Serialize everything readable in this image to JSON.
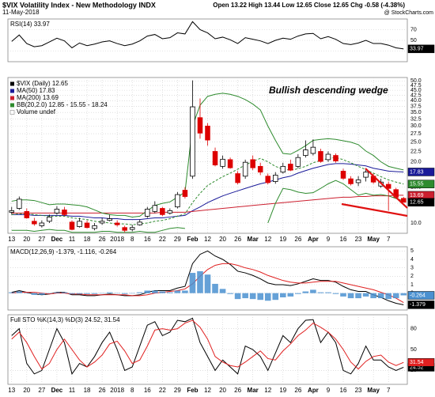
{
  "header": {
    "title": "$VIX Volatility Index - New Methodology INDX",
    "date": "11-May-2018",
    "quote": "Open 13.22 High 13.44 Low 12.65 Close 12.65 Chg -0.58 (-4.38%)",
    "source": "@ StockCharts.com"
  },
  "chart_data": [
    {
      "type": "line",
      "title": "RSI(14) 33.97",
      "ylim": [
        10,
        90
      ],
      "yticks": [
        30,
        50,
        70
      ],
      "grid": true,
      "series": [
        {
          "color": "#000000",
          "tag": true,
          "values": [
            48,
            60,
            44,
            38,
            40,
            47,
            54,
            49,
            36,
            45,
            40,
            43,
            47,
            49,
            44,
            40,
            43,
            49,
            58,
            61,
            53,
            55,
            64,
            62,
            85,
            70,
            64,
            53,
            56,
            51,
            44,
            55,
            52,
            49,
            44,
            50,
            54,
            52,
            58,
            62,
            63,
            53,
            57,
            52,
            44,
            42,
            45,
            50,
            44,
            44,
            41,
            36,
            33.97
          ]
        }
      ]
    },
    {
      "type": "candlestick",
      "log_scale": true,
      "grid": true,
      "ylim": [
        8.9,
        52
      ],
      "annotation": "Bullish descending wedge",
      "yticks": [
        {
          "value": 10,
          "label": "10.0"
        },
        12.5,
        {
          "value": 15,
          "label": "15.0"
        },
        17.5,
        {
          "value": 20,
          "label": "20.0"
        },
        22.5,
        {
          "value": 25,
          "label": "25.0"
        },
        27.5,
        {
          "value": 30,
          "label": "30.0"
        },
        32.5,
        {
          "value": 35,
          "label": "35.0"
        },
        37.5,
        {
          "value": 40,
          "label": "40.0"
        },
        42.5,
        {
          "value": 45,
          "label": "45.0"
        },
        47.5,
        {
          "value": 50,
          "label": "50.0"
        }
      ],
      "categories": [
        "13",
        null,
        "20",
        null,
        "27",
        null,
        "Dec",
        null,
        "11",
        null,
        "18",
        null,
        "26",
        null,
        "2018",
        null,
        "8",
        null,
        "16",
        null,
        "22",
        null,
        "29",
        null,
        "Feb",
        null,
        "12",
        null,
        "20",
        null,
        "26",
        null,
        "Mar",
        null,
        "12",
        null,
        "19",
        null,
        "26",
        null,
        "Apr",
        null,
        "9",
        null,
        "16",
        null,
        "23",
        null,
        "May",
        null,
        "7",
        null,
        null
      ],
      "candles": {
        "name": "$VIX (Daily) 12.65",
        "up_color": "#000000",
        "down_color": "#dd0000",
        "tag": true,
        "open": [
          11.3,
          11.8,
          11.4,
          10.2,
          9.7,
          10.2,
          11.2,
          11.6,
          10.1,
          9.6,
          10.0,
          9.4,
          10.0,
          10.3,
          10.0,
          9.5,
          9.3,
          9.8,
          10.8,
          11.4,
          11.8,
          11.2,
          12.0,
          14.5,
          17.0,
          33.0,
          30.0,
          22.5,
          19.0,
          20.5,
          17.5,
          17.0,
          20.5,
          19.0,
          17.0,
          16.0,
          17.8,
          19.5,
          19.0,
          21.5,
          22.0,
          22.5,
          20.5,
          21.5,
          18.0,
          16.5,
          15.8,
          16.8,
          17.0,
          15.2,
          15.5,
          14.6,
          13.22
        ],
        "high": [
          12.0,
          13.5,
          11.8,
          10.6,
          10.3,
          11.0,
          12.1,
          12.0,
          10.3,
          10.6,
          10.3,
          10.0,
          10.6,
          11.0,
          10.3,
          9.7,
          9.8,
          10.4,
          12.0,
          12.8,
          12.0,
          11.8,
          14.2,
          15.0,
          50.3,
          41.0,
          31.0,
          23.5,
          21.5,
          21.0,
          18.0,
          20.5,
          21.5,
          19.8,
          17.5,
          17.8,
          19.8,
          20.5,
          21.8,
          25.5,
          25.8,
          23.2,
          22.5,
          22.0,
          18.5,
          17.0,
          17.0,
          18.5,
          17.5,
          16.5,
          16.0,
          14.9,
          13.44
        ],
        "low": [
          11.0,
          11.6,
          10.5,
          9.7,
          9.5,
          10.0,
          11.0,
          10.8,
          9.2,
          9.5,
          9.4,
          9.2,
          9.8,
          10.2,
          9.6,
          9.0,
          9.1,
          9.7,
          10.6,
          11.2,
          10.8,
          11.0,
          11.8,
          13.2,
          16.5,
          26.0,
          24.0,
          19.0,
          18.5,
          18.5,
          15.5,
          16.5,
          18.2,
          17.2,
          15.5,
          15.6,
          17.5,
          18.0,
          18.6,
          21.0,
          21.5,
          19.8,
          20.0,
          19.8,
          16.3,
          15.3,
          15.2,
          16.0,
          15.6,
          14.9,
          11.5,
          13.2,
          12.65
        ],
        "close": [
          11.5,
          13.1,
          10.6,
          9.9,
          10.0,
          10.7,
          11.7,
          11.0,
          9.3,
          10.2,
          9.5,
          9.7,
          10.2,
          10.5,
          9.8,
          9.2,
          9.5,
          10.1,
          11.7,
          12.2,
          11.0,
          11.5,
          13.8,
          13.5,
          37.3,
          27.7,
          25.6,
          19.3,
          20.6,
          18.7,
          15.8,
          19.9,
          18.7,
          17.8,
          15.8,
          17.2,
          19.0,
          18.2,
          21.0,
          22.9,
          23.6,
          20.1,
          21.8,
          20.2,
          16.6,
          15.6,
          16.3,
          17.8,
          15.9,
          15.9,
          14.8,
          13.4,
          12.65
        ]
      },
      "series": [
        {
          "name": "MA(50) 17.83",
          "color": "#1a1a99",
          "tag": true,
          "values": [
            11.0,
            11.0,
            11.0,
            10.9,
            10.9,
            10.9,
            10.9,
            10.9,
            10.8,
            10.8,
            10.7,
            10.6,
            10.6,
            10.5,
            10.5,
            10.4,
            10.4,
            10.4,
            10.5,
            10.6,
            10.6,
            10.7,
            10.8,
            10.9,
            11.5,
            12.0,
            12.6,
            13.1,
            13.6,
            14.0,
            14.4,
            14.8,
            15.2,
            15.6,
            15.9,
            16.3,
            16.7,
            17.0,
            17.6,
            18.1,
            18.6,
            19.0,
            19.4,
            19.6,
            19.6,
            19.5,
            19.3,
            19.1,
            18.6,
            18.3,
            18.0,
            17.9,
            17.83
          ]
        },
        {
          "name": "MA(200) 13.69",
          "color": "#cc1f2f",
          "tag": true,
          "values": [
            11.2,
            11.2,
            11.2,
            11.2,
            11.2,
            11.2,
            11.2,
            11.2,
            11.2,
            11.2,
            11.2,
            11.2,
            11.2,
            11.2,
            11.2,
            11.2,
            11.2,
            11.2,
            11.2,
            11.2,
            11.3,
            11.3,
            11.3,
            11.3,
            11.4,
            11.5,
            11.6,
            11.7,
            11.8,
            11.9,
            12.0,
            12.1,
            12.2,
            12.3,
            12.4,
            12.5,
            12.6,
            12.7,
            12.8,
            12.9,
            13.0,
            13.1,
            13.2,
            13.3,
            13.4,
            13.4,
            13.5,
            13.5,
            13.6,
            13.6,
            13.6,
            13.7,
            13.69
          ]
        },
        {
          "name": "BB(20,2.0) 12.85 - 15.55 - 18.24",
          "color": "#2e8b2e",
          "values": [
            12.8,
            13.0,
            13.0,
            12.9,
            12.6,
            12.3,
            12.4,
            12.4,
            12.3,
            12.2,
            12.0,
            11.6,
            11.2,
            11.0,
            10.9,
            10.9,
            10.7,
            10.8,
            11.5,
            12.2,
            12.5,
            12.7,
            13.4,
            14.2,
            30.0,
            38.0,
            42.0,
            43.0,
            43.5,
            43.0,
            42.0,
            40.5,
            38.5,
            36.0,
            30.0,
            25.5,
            22.0,
            21.8,
            22.8,
            24.0,
            25.5,
            25.8,
            26.0,
            25.8,
            25.4,
            25.0,
            24.3,
            22.6,
            21.5,
            20.0,
            19.0,
            18.6,
            18.24
          ]
        },
        {
          "color": "#2e8b2e",
          "dash": true,
          "tag": true,
          "values": [
            11.0,
            11.1,
            11.1,
            11.0,
            10.9,
            10.8,
            10.8,
            10.8,
            10.6,
            10.5,
            10.4,
            10.2,
            10.1,
            10.0,
            9.9,
            9.9,
            9.8,
            9.9,
            10.0,
            10.2,
            10.3,
            10.5,
            10.8,
            11.1,
            12.6,
            14.0,
            15.3,
            16.1,
            16.9,
            17.6,
            18.4,
            19.3,
            20.1,
            20.8,
            20.0,
            19.0,
            18.4,
            18.2,
            18.5,
            19.0,
            19.8,
            20.3,
            20.8,
            21.0,
            20.5,
            19.8,
            19.0,
            18.3,
            17.6,
            16.9,
            16.3,
            15.9,
            15.55
          ]
        },
        {
          "color": "#2e8b2e",
          "values": [
            9.2,
            9.2,
            9.2,
            9.1,
            9.2,
            9.3,
            9.2,
            9.2,
            9.0,
            9.0,
            9.0,
            9.0,
            9.1,
            9.1,
            9.0,
            9.0,
            9.0,
            9.1,
            9.0,
            9.0,
            9.2,
            9.4,
            9.5,
            9.4,
            null,
            null,
            null,
            null,
            null,
            null,
            null,
            null,
            null,
            null,
            10.0,
            12.5,
            14.8,
            14.6,
            14.2,
            14.0,
            14.1,
            14.8,
            15.6,
            16.2,
            15.6,
            14.6,
            13.7,
            14.0,
            13.7,
            13.8,
            13.6,
            13.2,
            12.85
          ]
        }
      ],
      "legend_texts": [
        "Volume undef"
      ]
    },
    {
      "type": "line",
      "title": "MACD(12,26,9) -1.379, -1.116, -0.264",
      "ylim": [
        -2,
        5.5
      ],
      "yticks": [
        0,
        1,
        2,
        3,
        4,
        5
      ],
      "grid": true,
      "series": [
        {
          "color": "#000000",
          "tag": true,
          "values": [
            0.1,
            0.3,
            0.1,
            -0.1,
            -0.2,
            -0.1,
            0.1,
            0.1,
            -0.2,
            -0.2,
            -0.3,
            -0.3,
            -0.2,
            -0.1,
            -0.2,
            -0.3,
            -0.3,
            -0.2,
            0.1,
            0.3,
            0.3,
            0.3,
            0.6,
            0.8,
            3.5,
            4.6,
            5.0,
            4.4,
            4.0,
            3.4,
            2.6,
            2.4,
            2.1,
            1.7,
            1.2,
            1.0,
            1.0,
            0.9,
            1.1,
            1.4,
            1.7,
            1.5,
            1.5,
            1.3,
            0.8,
            0.4,
            0.2,
            0.2,
            -0.2,
            -0.5,
            -0.9,
            -1.2,
            -1.379
          ]
        },
        {
          "color": "#e02020",
          "values": [
            0,
            0.1,
            0.1,
            0.1,
            0,
            -0.1,
            0,
            0,
            -0.1,
            -0.1,
            -0.2,
            -0.2,
            -0.2,
            -0.2,
            -0.2,
            -0.2,
            -0.3,
            -0.3,
            -0.2,
            0,
            0.1,
            0.2,
            0.3,
            0.5,
            1.1,
            2.0,
            2.8,
            3.3,
            3.5,
            3.5,
            3.3,
            3.0,
            2.8,
            2.5,
            2.1,
            1.8,
            1.5,
            1.3,
            1.2,
            1.2,
            1.3,
            1.4,
            1.4,
            1.4,
            1.2,
            1.0,
            0.8,
            0.6,
            0.4,
            0.1,
            -0.2,
            -0.6,
            -1.116
          ]
        },
        {
          "color": "#4a90d0",
          "style": "bars",
          "tag": true,
          "values": [
            0.1,
            0.2,
            0,
            -0.2,
            -0.2,
            0,
            0.1,
            0.1,
            -0.1,
            -0.1,
            -0.1,
            -0.1,
            0,
            0.1,
            0,
            -0.1,
            0,
            0.1,
            0.3,
            0.3,
            0.2,
            0.1,
            0.3,
            0.3,
            2.4,
            2.6,
            2.2,
            1.1,
            0.5,
            -0.1,
            -0.7,
            -0.6,
            -0.7,
            -0.8,
            -0.9,
            -0.8,
            -0.5,
            -0.4,
            -0.1,
            0.2,
            0.4,
            0.1,
            0.1,
            -0.1,
            -0.4,
            -0.6,
            -0.6,
            -0.4,
            -0.6,
            -0.6,
            -0.7,
            -0.6,
            -0.264
          ]
        }
      ]
    },
    {
      "type": "line",
      "title": "Full STO %K(14,3) %D(3) 24.52, 31.54",
      "ylim": [
        0,
        100
      ],
      "yticks": [
        20,
        50,
        80
      ],
      "grid": true,
      "categories": [
        "13",
        null,
        "20",
        null,
        "27",
        null,
        "Dec",
        null,
        "11",
        null,
        "18",
        null,
        "26",
        null,
        "2018",
        null,
        "8",
        null,
        "16",
        null,
        "22",
        null,
        "29",
        null,
        "Feb",
        null,
        "12",
        null,
        "20",
        null,
        "26",
        null,
        "Mar",
        null,
        "12",
        null,
        "19",
        null,
        "26",
        null,
        "Apr",
        null,
        "9",
        null,
        "16",
        null,
        "23",
        null,
        "May",
        null,
        "7",
        null,
        null
      ],
      "series": [
        {
          "color": "#000000",
          "tag": true,
          "values": [
            70,
            80,
            30,
            15,
            20,
            50,
            80,
            60,
            15,
            30,
            25,
            40,
            60,
            75,
            50,
            20,
            25,
            55,
            85,
            90,
            70,
            75,
            92,
            90,
            95,
            60,
            40,
            20,
            35,
            25,
            15,
            55,
            50,
            40,
            20,
            45,
            70,
            60,
            80,
            92,
            93,
            60,
            75,
            60,
            20,
            15,
            30,
            55,
            35,
            35,
            25,
            20,
            24.52
          ]
        },
        {
          "color": "#e02020",
          "tag": true,
          "values": [
            65,
            75,
            60,
            40,
            22,
            30,
            50,
            65,
            50,
            35,
            25,
            32,
            42,
            58,
            62,
            48,
            30,
            35,
            55,
            78,
            80,
            78,
            80,
            88,
            92,
            82,
            65,
            40,
            32,
            27,
            25,
            32,
            40,
            48,
            37,
            35,
            48,
            58,
            70,
            78,
            88,
            82,
            75,
            65,
            50,
            32,
            22,
            33,
            40,
            42,
            32,
            27,
            31.54
          ]
        }
      ]
    }
  ]
}
